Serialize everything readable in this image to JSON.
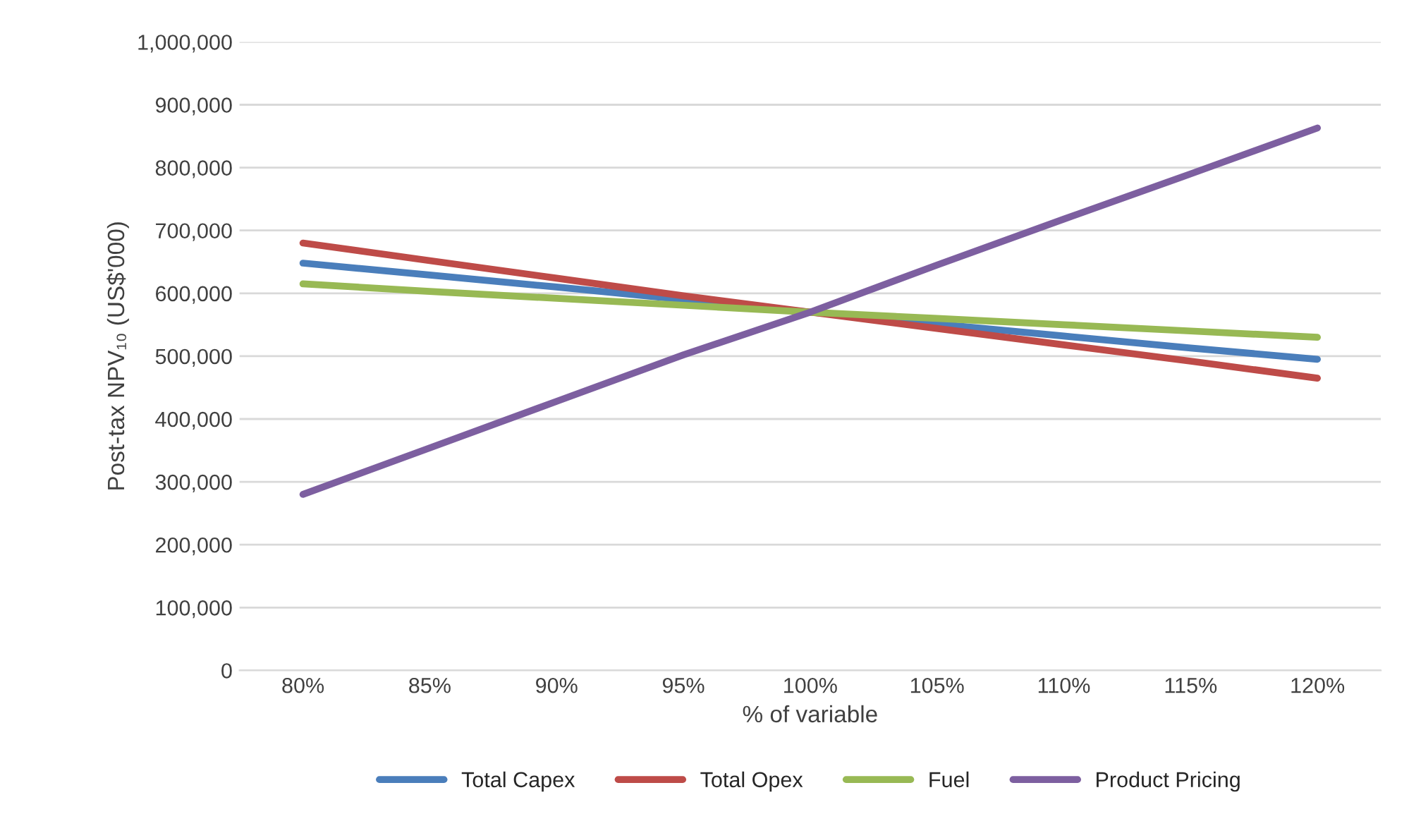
{
  "chart_data": {
    "type": "line",
    "xlabel": "% of variable",
    "ylabel": "Post-tax NPV₁₀ (US$'000)",
    "categories": [
      "80%",
      "85%",
      "90%",
      "95%",
      "100%",
      "105%",
      "110%",
      "115%",
      "120%"
    ],
    "series": [
      {
        "name": "Total Capex",
        "color": "#4a7ebb",
        "values": [
          648000,
          629000,
          610000,
          590000,
          570000,
          551000,
          532000,
          513000,
          495000
        ]
      },
      {
        "name": "Total Opex",
        "color": "#be4b48",
        "values": [
          680000,
          652000,
          624000,
          596000,
          570000,
          544000,
          518000,
          492000,
          465000
        ]
      },
      {
        "name": "Fuel",
        "color": "#98b954",
        "values": [
          615000,
          603000,
          592000,
          581000,
          570000,
          560000,
          550000,
          540000,
          530000
        ]
      },
      {
        "name": "Product Pricing",
        "color": "#7d5fa0",
        "values": [
          280000,
          354000,
          428000,
          502000,
          570000,
          645000,
          718000,
          790000,
          863000
        ]
      }
    ],
    "ylim": [
      0,
      1000000
    ],
    "yticks": [
      0,
      {
        "value": 100000,
        "label": "100,000"
      },
      {
        "value": 200000,
        "label": "200,000"
      },
      {
        "value": 300000,
        "label": "300,000"
      },
      {
        "value": 400000,
        "label": "400,000"
      },
      {
        "value": 500000,
        "label": "500,000"
      },
      {
        "value": 600000,
        "label": "600,000"
      },
      {
        "value": 700000,
        "label": "700,000"
      },
      {
        "value": 800000,
        "label": "800,000"
      },
      {
        "value": 900000,
        "label": "900,000"
      },
      {
        "value": 1000000,
        "label": "1,000,000"
      }
    ],
    "grid": "y",
    "legend": "bottom",
    "line_style": "solid",
    "marker": "none"
  }
}
